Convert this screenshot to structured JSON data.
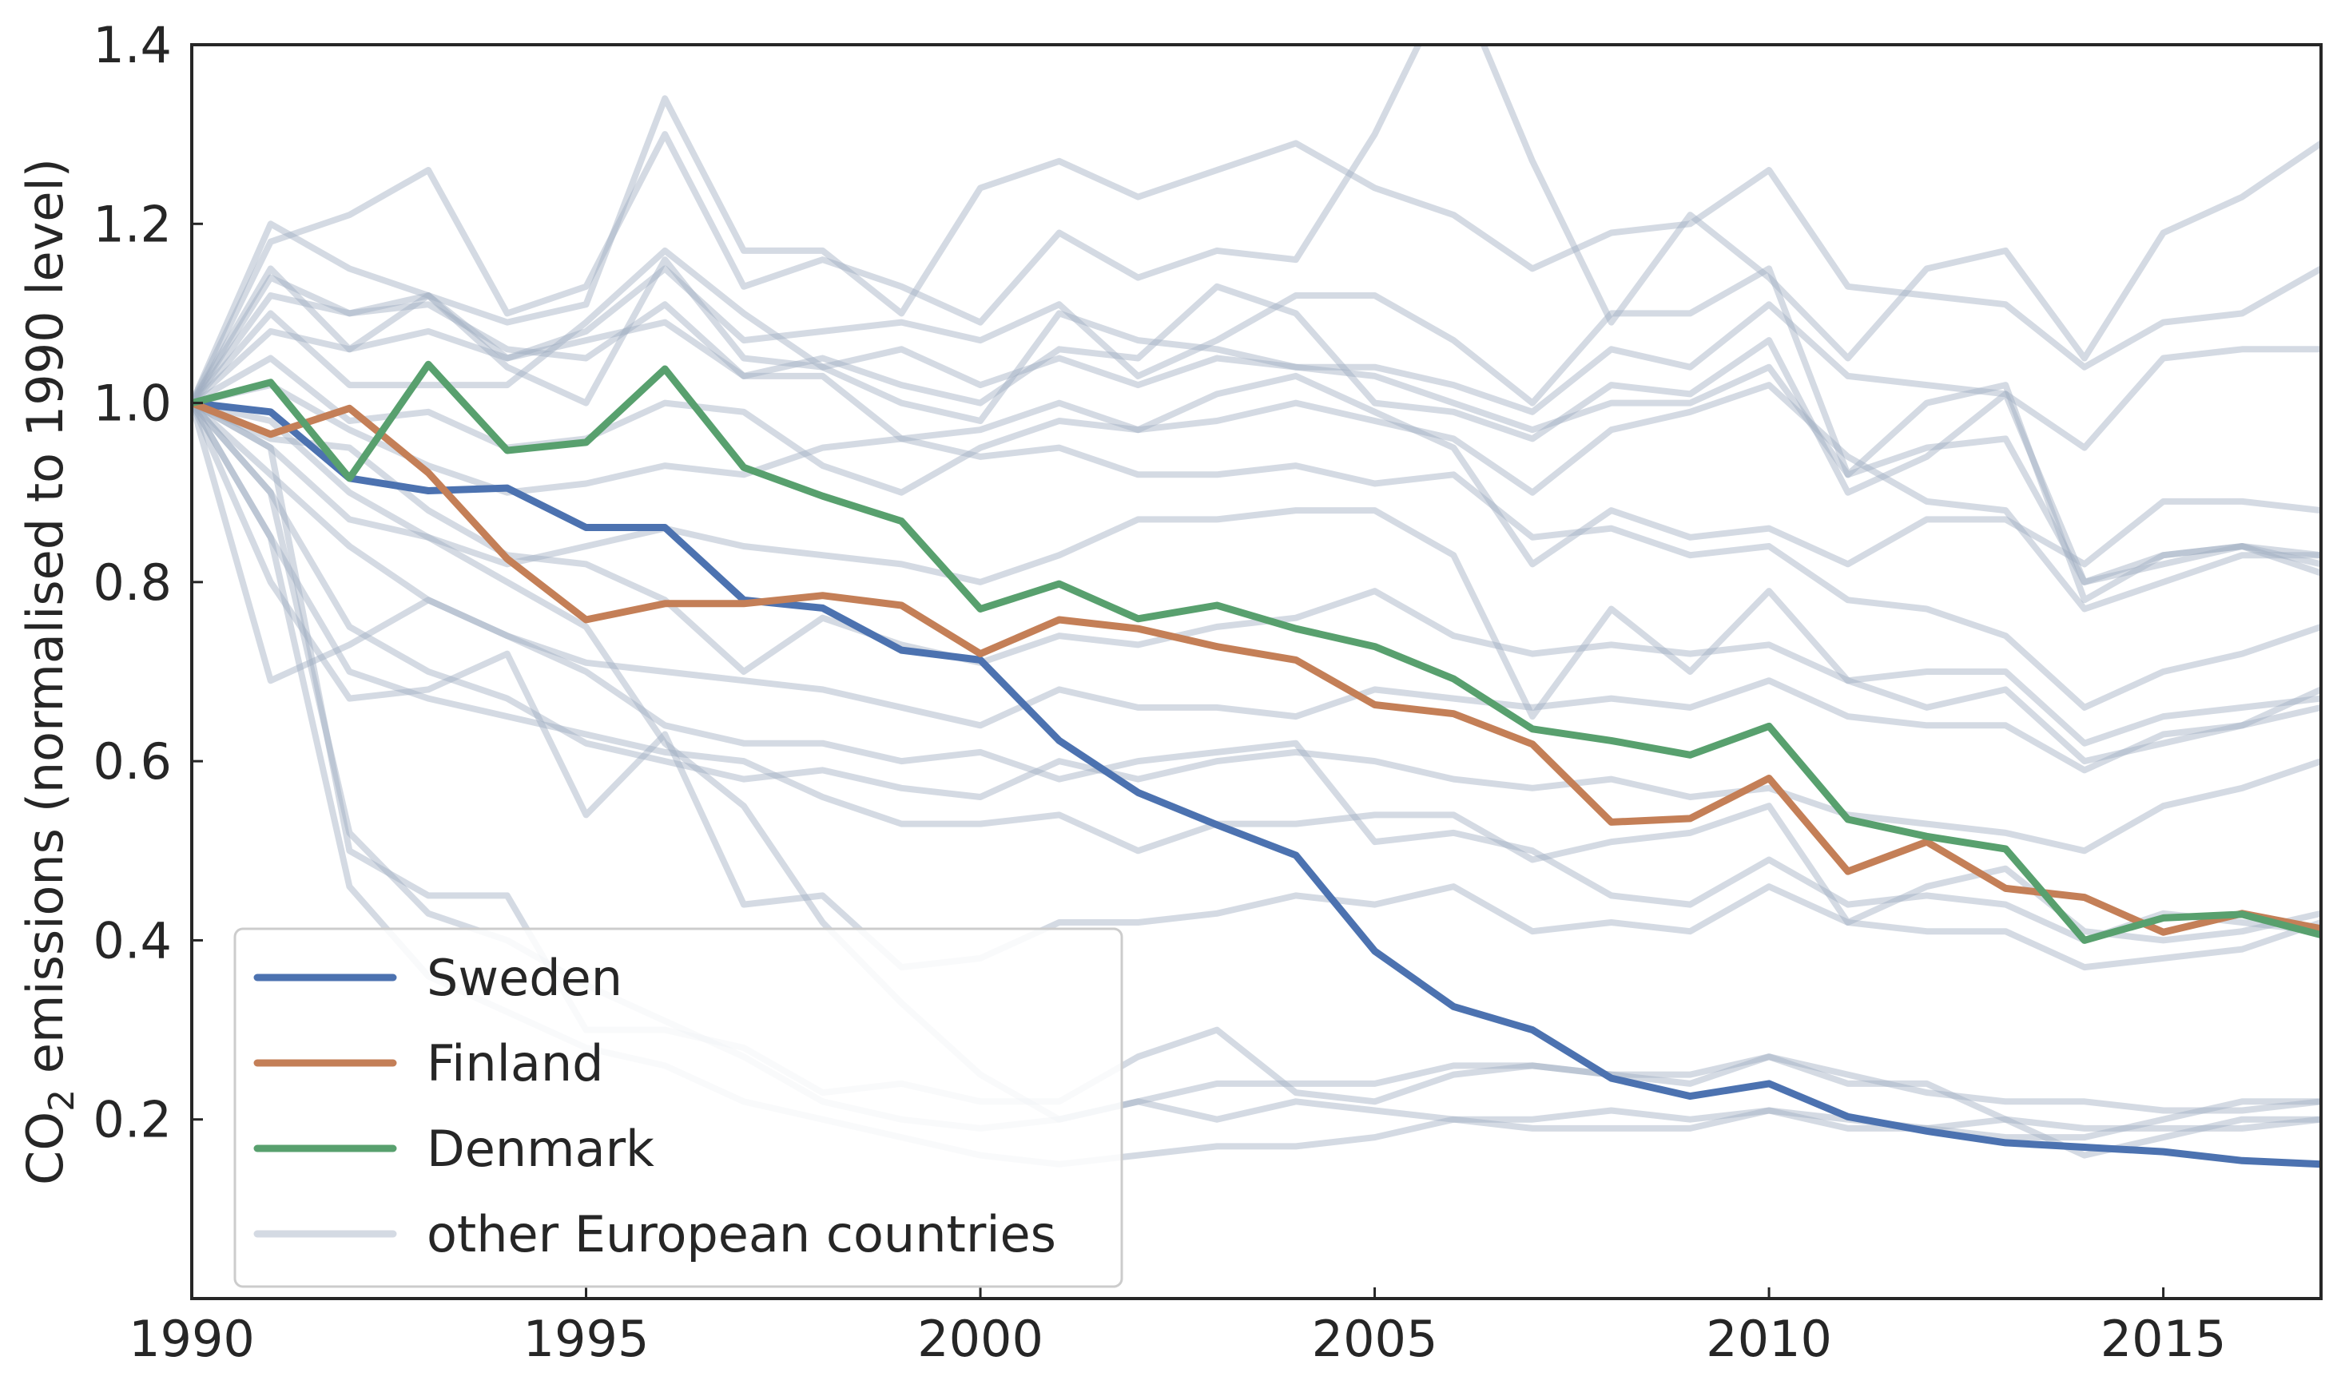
{
  "chart_data": {
    "type": "line",
    "title": "",
    "xlabel": "",
    "ylabel": "CO₂ emissions (normalised to 1990 level)",
    "xlim": [
      1990,
      2017
    ],
    "ylim": [
      0.0,
      1.4
    ],
    "x_ticks": [
      1990,
      1995,
      2000,
      2005,
      2010,
      2015
    ],
    "x_tick_labels": [
      "1990",
      "1995",
      "2000",
      "2005",
      "2010",
      "2015"
    ],
    "y_ticks": [
      0.2,
      0.4,
      0.6,
      0.8,
      1.0,
      1.2,
      1.4
    ],
    "y_tick_labels": [
      "0.2",
      "0.4",
      "0.6",
      "0.8",
      "1.0",
      "1.2",
      "1.4"
    ],
    "grid": false,
    "legend": {
      "placement": "lower-left",
      "entries": [
        "Sweden",
        "Finland",
        "Denmark",
        "other European countries"
      ]
    },
    "x": [
      1990,
      1991,
      1992,
      1993,
      1994,
      1995,
      1996,
      1997,
      1998,
      1999,
      2000,
      2001,
      2002,
      2003,
      2004,
      2005,
      2006,
      2007,
      2008,
      2009,
      2010,
      2011,
      2012,
      2013,
      2014,
      2015,
      2016,
      2017
    ],
    "series": [
      {
        "name": "Sweden",
        "color": "#4c72b0",
        "values": [
          1.0,
          0.99,
          0.916,
          0.902,
          0.905,
          0.861,
          0.861,
          0.78,
          0.771,
          0.724,
          0.713,
          0.623,
          0.565,
          0.529,
          0.495,
          0.388,
          0.326,
          0.3,
          0.246,
          0.226,
          0.24,
          0.203,
          0.187,
          0.174,
          0.169,
          0.164,
          0.154,
          0.15
        ]
      },
      {
        "name": "Finland",
        "color": "#c47f57",
        "values": [
          1.0,
          0.965,
          0.994,
          0.922,
          0.826,
          0.758,
          0.776,
          0.776,
          0.785,
          0.774,
          0.72,
          0.758,
          0.748,
          0.728,
          0.713,
          0.663,
          0.653,
          0.619,
          0.532,
          0.536,
          0.581,
          0.477,
          0.51,
          0.458,
          0.448,
          0.409,
          0.43,
          0.413
        ]
      },
      {
        "name": "Denmark",
        "color": "#58a06e",
        "values": [
          1.0,
          1.023,
          0.916,
          1.043,
          0.947,
          0.956,
          1.038,
          0.928,
          0.896,
          0.868,
          0.77,
          0.798,
          0.759,
          0.774,
          0.748,
          0.728,
          0.692,
          0.636,
          0.623,
          0.607,
          0.639,
          0.535,
          0.516,
          0.502,
          0.4,
          0.425,
          0.429,
          0.406
        ]
      }
    ],
    "other_countries": {
      "name": "other European countries",
      "color": "#a0aec0",
      "series": [
        [
          1.0,
          1.2,
          1.15,
          1.12,
          1.09,
          1.11,
          1.34,
          1.17,
          1.17,
          1.1,
          1.24,
          1.27,
          1.23,
          1.26,
          1.29,
          1.24,
          1.21,
          1.15,
          1.19,
          1.2,
          1.26,
          1.13,
          1.12,
          1.11,
          1.04,
          1.09,
          1.1,
          1.15
        ],
        [
          1.0,
          1.18,
          1.21,
          1.26,
          1.1,
          1.13,
          1.3,
          1.13,
          1.16,
          1.13,
          1.09,
          1.19,
          1.14,
          1.17,
          1.16,
          1.3,
          1.48,
          1.27,
          1.09,
          1.21,
          1.14,
          1.05,
          1.15,
          1.17,
          1.05,
          1.19,
          1.23,
          1.29
        ],
        [
          1.0,
          1.15,
          1.06,
          1.12,
          1.05,
          1.08,
          1.15,
          1.07,
          1.08,
          1.09,
          1.07,
          1.11,
          1.03,
          1.07,
          1.12,
          1.12,
          1.07,
          1.0,
          1.1,
          1.1,
          1.15,
          0.92,
          1.0,
          1.02,
          0.78,
          0.83,
          0.84,
          0.82
        ],
        [
          1.0,
          1.12,
          1.1,
          1.11,
          1.06,
          1.05,
          1.11,
          1.03,
          1.05,
          1.02,
          1.0,
          1.06,
          1.05,
          1.13,
          1.1,
          1.0,
          0.99,
          0.96,
          1.02,
          1.01,
          1.07,
          0.9,
          0.94,
          1.01,
          0.8,
          0.83,
          0.84,
          0.81
        ],
        [
          1.0,
          1.1,
          1.02,
          1.02,
          1.02,
          1.09,
          1.17,
          1.1,
          1.04,
          1.0,
          0.98,
          1.1,
          1.07,
          1.06,
          1.04,
          1.04,
          1.02,
          0.99,
          1.06,
          1.04,
          1.11,
          1.03,
          1.02,
          1.01,
          0.95,
          1.05,
          1.06,
          1.06
        ],
        [
          1.0,
          1.08,
          1.06,
          1.08,
          1.05,
          1.07,
          1.09,
          1.03,
          1.03,
          0.96,
          0.97,
          1.0,
          0.97,
          0.98,
          1.0,
          0.98,
          0.96,
          0.9,
          0.97,
          0.99,
          1.02,
          0.94,
          0.89,
          0.88,
          0.77,
          0.8,
          0.83,
          0.83
        ],
        [
          1.0,
          1.05,
          0.98,
          0.99,
          0.95,
          0.96,
          1.0,
          0.99,
          0.93,
          0.9,
          0.95,
          0.98,
          0.97,
          1.01,
          1.03,
          0.99,
          0.95,
          0.82,
          0.88,
          0.85,
          0.86,
          0.82,
          0.87,
          0.87,
          0.82,
          0.89,
          0.89,
          0.88
        ],
        [
          1.0,
          1.02,
          0.97,
          0.93,
          0.9,
          0.91,
          0.93,
          0.92,
          0.95,
          0.96,
          0.94,
          0.95,
          0.92,
          0.92,
          0.93,
          0.91,
          0.92,
          0.85,
          0.86,
          0.83,
          0.84,
          0.78,
          0.77,
          0.74,
          0.66,
          0.7,
          0.72,
          0.75
        ],
        [
          1.0,
          0.95,
          0.87,
          0.85,
          0.82,
          0.84,
          0.86,
          0.84,
          0.83,
          0.82,
          0.8,
          0.83,
          0.87,
          0.87,
          0.88,
          0.88,
          0.83,
          0.65,
          0.77,
          0.7,
          0.79,
          0.69,
          0.66,
          0.68,
          0.6,
          0.62,
          0.64,
          0.66
        ],
        [
          1.0,
          0.92,
          0.84,
          0.78,
          0.74,
          0.71,
          0.7,
          0.69,
          0.68,
          0.66,
          0.64,
          0.68,
          0.66,
          0.66,
          0.65,
          0.68,
          0.67,
          0.66,
          0.67,
          0.66,
          0.69,
          0.65,
          0.64,
          0.64,
          0.59,
          0.63,
          0.64,
          0.68
        ],
        [
          1.0,
          0.9,
          0.75,
          0.7,
          0.67,
          0.62,
          0.6,
          0.58,
          0.59,
          0.57,
          0.56,
          0.6,
          0.58,
          0.6,
          0.61,
          0.6,
          0.58,
          0.57,
          0.58,
          0.56,
          0.57,
          0.54,
          0.53,
          0.52,
          0.5,
          0.55,
          0.57,
          0.6
        ],
        [
          1.0,
          0.85,
          0.7,
          0.67,
          0.65,
          0.63,
          0.61,
          0.6,
          0.56,
          0.53,
          0.53,
          0.54,
          0.5,
          0.53,
          0.53,
          0.54,
          0.54,
          0.49,
          0.51,
          0.52,
          0.55,
          0.42,
          0.46,
          0.48,
          0.41,
          0.4,
          0.41,
          0.43
        ],
        [
          1.0,
          0.8,
          0.67,
          0.68,
          0.72,
          0.54,
          0.63,
          0.44,
          0.45,
          0.37,
          0.38,
          0.42,
          0.42,
          0.43,
          0.45,
          0.44,
          0.46,
          0.41,
          0.42,
          0.41,
          0.46,
          0.42,
          0.41,
          0.41,
          0.37,
          0.38,
          0.39,
          0.42
        ],
        [
          1.0,
          0.69,
          0.73,
          0.78,
          0.74,
          0.7,
          0.64,
          0.62,
          0.62,
          0.6,
          0.61,
          0.58,
          0.6,
          0.61,
          0.62,
          0.51,
          0.52,
          0.5,
          0.45,
          0.44,
          0.49,
          0.44,
          0.45,
          0.44,
          0.4,
          0.43,
          0.42,
          0.41
        ],
        [
          1.0,
          0.95,
          0.5,
          0.45,
          0.45,
          0.3,
          0.3,
          0.28,
          0.23,
          0.24,
          0.22,
          0.22,
          0.27,
          0.3,
          0.23,
          0.22,
          0.25,
          0.26,
          0.25,
          0.24,
          0.27,
          0.24,
          0.24,
          0.2,
          0.16,
          0.18,
          0.2,
          0.2
        ],
        [
          1.0,
          0.9,
          0.52,
          0.43,
          0.4,
          0.35,
          0.31,
          0.27,
          0.22,
          0.2,
          0.19,
          0.2,
          0.22,
          0.24,
          0.24,
          0.24,
          0.26,
          0.26,
          0.25,
          0.25,
          0.27,
          0.25,
          0.23,
          0.22,
          0.22,
          0.21,
          0.21,
          0.22
        ],
        [
          1.0,
          0.85,
          0.46,
          0.36,
          0.32,
          0.28,
          0.26,
          0.22,
          0.2,
          0.18,
          0.16,
          0.15,
          0.16,
          0.17,
          0.17,
          0.18,
          0.2,
          0.19,
          0.19,
          0.19,
          0.21,
          0.2,
          0.19,
          0.2,
          0.19,
          0.19,
          0.19,
          0.2
        ],
        [
          1.0,
          0.98,
          0.9,
          0.85,
          0.8,
          0.75,
          0.62,
          0.55,
          0.42,
          0.33,
          0.25,
          0.2,
          0.22,
          0.2,
          0.22,
          0.21,
          0.2,
          0.2,
          0.21,
          0.2,
          0.21,
          0.19,
          0.19,
          0.18,
          0.18,
          0.2,
          0.22,
          0.22
        ],
        [
          1.0,
          1.14,
          1.1,
          1.12,
          1.04,
          1.0,
          1.16,
          1.05,
          1.04,
          1.06,
          1.02,
          1.05,
          1.02,
          1.05,
          1.04,
          1.03,
          1.0,
          0.97,
          1.0,
          1.0,
          1.04,
          0.92,
          0.95,
          0.96,
          0.8,
          0.82,
          0.84,
          0.83
        ],
        [
          1.0,
          0.96,
          0.95,
          0.88,
          0.83,
          0.82,
          0.78,
          0.7,
          0.76,
          0.73,
          0.71,
          0.74,
          0.73,
          0.75,
          0.76,
          0.79,
          0.74,
          0.72,
          0.73,
          0.72,
          0.73,
          0.69,
          0.7,
          0.7,
          0.62,
          0.65,
          0.66,
          0.67
        ]
      ]
    }
  }
}
